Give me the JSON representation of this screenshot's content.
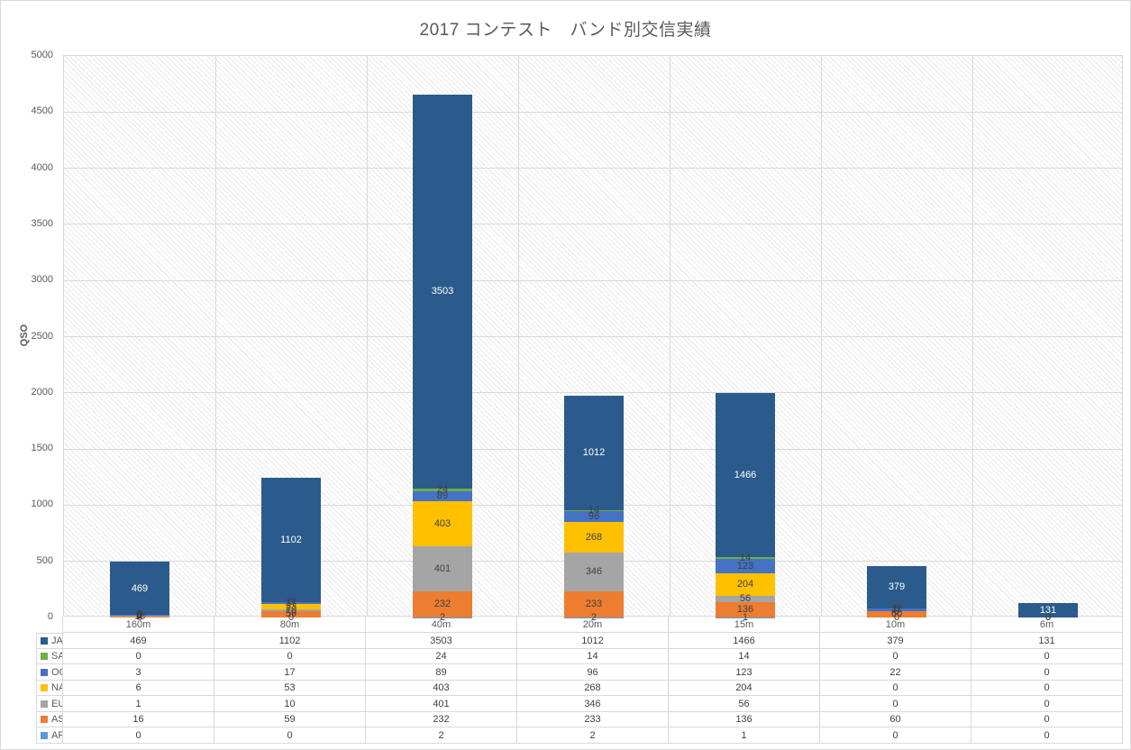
{
  "title": "2017 コンテスト　バンド別交信実績",
  "colors": {
    "grid": "#d9d9d9",
    "axis_text": "#595959",
    "value_text": "#404040",
    "title_text": "#595959"
  },
  "chart_data": {
    "type": "bar",
    "stacked": true,
    "title": "2017 コンテスト　バンド別交信実績",
    "xlabel": "",
    "ylabel": "QSO",
    "ylim": [
      0,
      5000
    ],
    "ytick_step": 500,
    "grid": true,
    "plot_background": "diagonal-hatch",
    "legend_position": "data-table-bottom",
    "categories": [
      "160m",
      "80m",
      "40m",
      "20m",
      "15m",
      "10m",
      "6m"
    ],
    "series": [
      {
        "name": "JA",
        "color": "#2A5B8C",
        "label_color": "#ffffff",
        "values": [
          469,
          1102,
          3503,
          1012,
          1466,
          379,
          131
        ]
      },
      {
        "name": "SA",
        "color": "#70AD47",
        "label_color": "#404040",
        "values": [
          0,
          0,
          24,
          14,
          14,
          0,
          0
        ]
      },
      {
        "name": "OC",
        "color": "#4472C4",
        "label_color": "#404040",
        "values": [
          3,
          17,
          89,
          96,
          123,
          22,
          0
        ]
      },
      {
        "name": "NA",
        "color": "#FFC000",
        "label_color": "#404040",
        "values": [
          6,
          53,
          403,
          268,
          204,
          0,
          0
        ]
      },
      {
        "name": "EU",
        "color": "#A5A5A5",
        "label_color": "#404040",
        "values": [
          1,
          10,
          401,
          346,
          56,
          0,
          0
        ]
      },
      {
        "name": "AS",
        "color": "#ED7D31",
        "label_color": "#404040",
        "values": [
          16,
          59,
          232,
          233,
          136,
          60,
          0
        ]
      },
      {
        "name": "AF",
        "color": "#5B9BD5",
        "label_color": "#404040",
        "values": [
          0,
          0,
          2,
          2,
          1,
          0,
          0
        ]
      }
    ],
    "stack_order_bottom_to_top": [
      "AF",
      "AS",
      "EU",
      "NA",
      "OC",
      "SA",
      "JA"
    ]
  }
}
